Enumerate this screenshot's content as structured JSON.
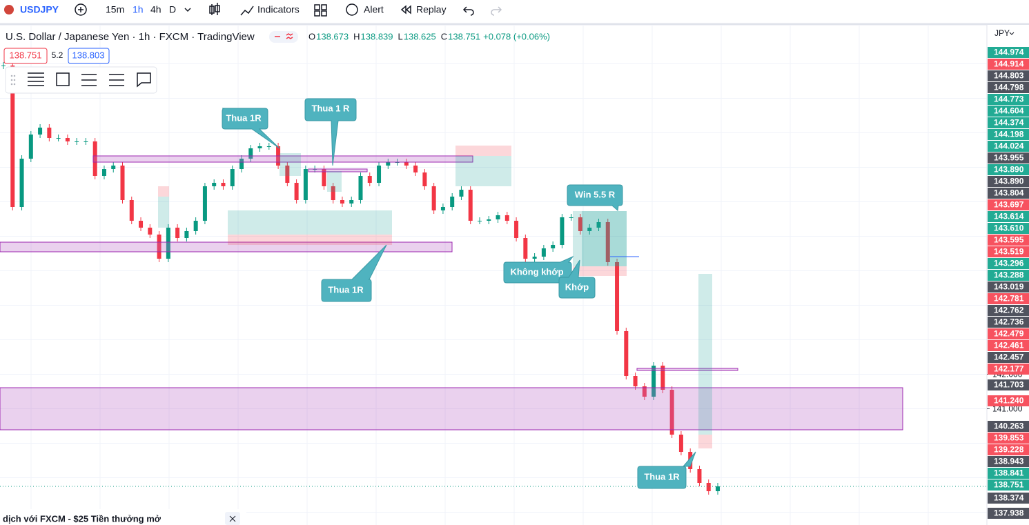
{
  "toolbar": {
    "symbol": "USDJPY",
    "intervals": [
      "15m",
      "1h",
      "4h",
      "D"
    ],
    "indicators": "Indicators",
    "alert": "Alert",
    "replay": "Replay"
  },
  "legend": {
    "title": "U.S. Dollar / Japanese Yen · 1h · FXCM · TradingView",
    "ohlc": [
      {
        "label": "O",
        "value": "138.673"
      },
      {
        "label": "H",
        "value": "138.839"
      },
      {
        "label": "L",
        "value": "138.625"
      },
      {
        "label": "C",
        "value": "138.751"
      }
    ],
    "change": "+0.078 (+0.06%)",
    "bid": "138.751",
    "spread": "5.2",
    "ask": "138.803"
  },
  "annotations": [
    "Thua 1R",
    "Thua 1 R",
    "Thua 1R",
    "Win 5.5 R",
    "Không khớp",
    "Khớp",
    "Thua 1R"
  ],
  "price_axis": {
    "currency": "JPY",
    "tags": [
      {
        "label": "144.974",
        "color": "#22ab94"
      },
      {
        "label": "144.914",
        "color": "#f7525f"
      },
      {
        "label": "144.803",
        "color": "#50535e"
      },
      {
        "label": "144.798",
        "color": "#50535e"
      },
      {
        "label": "144.773",
        "color": "#22ab94"
      },
      {
        "label": "144.604",
        "color": "#22ab94"
      },
      {
        "label": "144.374",
        "color": "#22ab94"
      },
      {
        "label": "144.198",
        "color": "#22ab94"
      },
      {
        "label": "144.024",
        "color": "#22ab94"
      },
      {
        "label": "143.955",
        "color": "#50535e"
      },
      {
        "label": "143.890",
        "color": "#22ab94"
      },
      {
        "label": "143.890",
        "color": "#50535e"
      },
      {
        "label": "143.804",
        "color": "#50535e"
      },
      {
        "label": "143.697",
        "color": "#f7525f"
      },
      {
        "label": "143.614",
        "color": "#22ab94"
      },
      {
        "label": "143.610",
        "color": "#22ab94"
      },
      {
        "label": "143.595",
        "color": "#f7525f"
      },
      {
        "label": "143.519",
        "color": "#f7525f"
      },
      {
        "label": "143.296",
        "color": "#22ab94"
      },
      {
        "label": "143.288",
        "color": "#22ab94"
      },
      {
        "label": "143.019",
        "color": "#50535e"
      },
      {
        "label": "142.781",
        "color": "#f7525f"
      },
      {
        "label": "142.762",
        "color": "#50535e"
      },
      {
        "label": "142.736",
        "color": "#50535e"
      },
      {
        "label": "142.479",
        "color": "#f7525f"
      },
      {
        "label": "142.461",
        "color": "#f7525f"
      },
      {
        "label": "142.457",
        "color": "#50535e"
      },
      {
        "label": "142.177",
        "color": "#f7525f"
      },
      {
        "label": "141.703",
        "color": "#50535e"
      },
      {
        "label": "141.240",
        "color": "#f7525f"
      },
      {
        "label": "140.263",
        "color": "#50535e"
      },
      {
        "label": "139.853",
        "color": "#f7525f"
      },
      {
        "label": "139.228",
        "color": "#f7525f"
      },
      {
        "label": "138.943",
        "color": "#50535e"
      },
      {
        "label": "138.841",
        "color": "#22ab94"
      },
      {
        "label": "138.751",
        "color": "#22ab94"
      },
      {
        "label": "138.374",
        "color": "#50535e"
      },
      {
        "label": "137.938",
        "color": "#50535e"
      }
    ]
  },
  "banner": "dịch với FXCM - $25 Tiền thưởng mở",
  "chart_data": {
    "type": "candlestick",
    "up_color": "#089981",
    "down_color": "#f23645",
    "ylim": [
      137.63,
      152.05
    ],
    "yticks": [
      {
        "value": 142,
        "label": "142.000"
      },
      {
        "value": 141,
        "label": "141.000"
      }
    ],
    "grid_lines": [
      138,
      139,
      140,
      141,
      142,
      143,
      144,
      145,
      146,
      147,
      148,
      149,
      150,
      151
    ],
    "last_price": 138.751,
    "closes": [
      150.95,
      146.85,
      148.25,
      148.95,
      149.15,
      148.85,
      148.85,
      148.75,
      148.75,
      148.75,
      147.75,
      147.95,
      148.05,
      147.05,
      146.45,
      146.25,
      146.05,
      145.35,
      146.25,
      145.95,
      146.15,
      146.45,
      147.45,
      147.55,
      147.45,
      147.95,
      148.25,
      148.55,
      148.61,
      148.61,
      148.05,
      147.55,
      147.05,
      147.95,
      147.95,
      147.45,
      147.05,
      146.95,
      147.05,
      147.75,
      147.55,
      148.05,
      148.15,
      148.15,
      148.05,
      147.85,
      147.45,
      146.75,
      146.85,
      147.15,
      147.35,
      146.45,
      146.45,
      146.49,
      146.61,
      146.45,
      145.95,
      145.35,
      145.41,
      145.65,
      145.75,
      146.55,
      146.55,
      146.15,
      146.25,
      146.41,
      145.25,
      143.25,
      141.95,
      141.65,
      141.35,
      142.25,
      141.55,
      140.25,
      139.75,
      139.25,
      138.85,
      138.61,
      138.75
    ]
  }
}
